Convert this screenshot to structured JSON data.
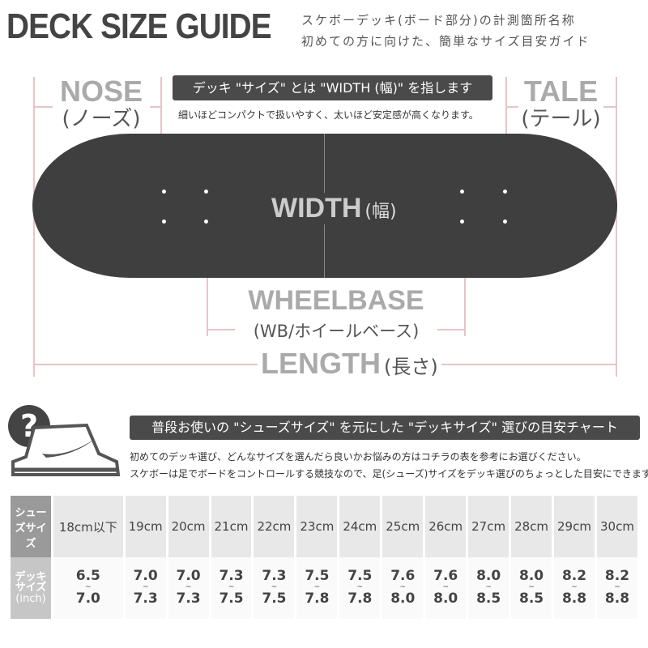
{
  "title": "DECK SIZE GUIDE",
  "subtitle_lines": [
    "スケボーデッキ(ボード部分)の計測箇所名称",
    "初めての方に向けた、簡単なサイズ目安ガイド"
  ],
  "nose": {
    "label": "NOSE",
    "jp": "(ノーズ)"
  },
  "tale": {
    "label": "TALE",
    "jp": "(テール)"
  },
  "width_banner": "デッキ \"サイズ\" とは \"WIDTH (幅)\" を指します",
  "width_note": "細いほどコンパクトで扱いやすく、太いほど安定感が高くなります。",
  "width": {
    "label": "WIDTH",
    "jp": "(幅)"
  },
  "wheelbase": {
    "label": "WHEELBASE",
    "jp": "(WB/ホイールベース)"
  },
  "length": {
    "label": "LENGTH",
    "jp": "(長さ)"
  },
  "chart_banner": "普段お使いの \"シューズサイズ\" を元にした \"デッキサイズ\" 選びの目安チャート",
  "chart_notes": [
    "初めてのデッキ選び、どんなサイズを選んだら良いかお悩みの方はコチラの表を参考にお選びください。",
    "スケボーは足でボードをコントロールする競技なので、足(シューズ)サイズをデッキ選びのちょっとした目安にできます。"
  ],
  "icons": [
    "question-icon",
    "sneaker-icon"
  ],
  "table": {
    "row_headers": {
      "shoe": "シューズサイズ",
      "deck": "デッキサイズ",
      "unit": "(inch)"
    },
    "shoe_sizes": [
      "18cm以下",
      "19cm",
      "20cm",
      "21cm",
      "22cm",
      "23cm",
      "24cm",
      "25cm",
      "26cm",
      "27cm",
      "28cm",
      "29cm",
      "30cm"
    ],
    "deck_sizes": [
      [
        "6.5",
        "7.0"
      ],
      [
        "7.0",
        "7.3"
      ],
      [
        "7.0",
        "7.3"
      ],
      [
        "7.3",
        "7.5"
      ],
      [
        "7.3",
        "7.5"
      ],
      [
        "7.5",
        "7.8"
      ],
      [
        "7.5",
        "7.8"
      ],
      [
        "7.6",
        "8.0"
      ],
      [
        "7.6",
        "8.0"
      ],
      [
        "8.0",
        "8.5"
      ],
      [
        "8.0",
        "8.5"
      ],
      [
        "8.2",
        "8.8"
      ],
      [
        "8.2",
        "8.8"
      ]
    ],
    "range_sep": "~"
  },
  "colors": {
    "dark": "#4a4a4a",
    "deck": "#3f3f3f",
    "guide": "#e8c4c8",
    "label_gray": "#aaaaaa"
  }
}
